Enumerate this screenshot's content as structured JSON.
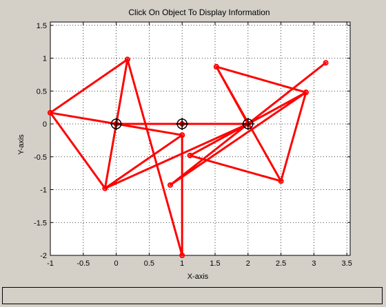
{
  "window": {
    "status_text": "",
    "background": "#d4d0c8"
  },
  "chart_data": {
    "type": "scatter",
    "title": "Click On Object To Display Information",
    "xlabel": "X-axis",
    "ylabel": "Y-axis",
    "xlim": [
      -1,
      3.55
    ],
    "ylim": [
      -2,
      1.55
    ],
    "xticks": [
      -1,
      -0.5,
      0,
      0.5,
      1,
      1.5,
      2,
      2.5,
      3,
      3.5
    ],
    "xtick_labels": [
      "-1",
      "-0.5",
      "0",
      "0.5",
      "1",
      "1.5",
      "2",
      "2.5",
      "3",
      "3.5"
    ],
    "yticks": [
      -2,
      -1.5,
      -1,
      -0.5,
      0,
      0.5,
      1,
      1.5
    ],
    "ytick_labels": [
      "-2",
      "-1.5",
      "-1",
      "-0.5",
      "0",
      "0.5",
      "1",
      "1.5"
    ],
    "grid": true,
    "line_color": "#ff0000",
    "marker_color": "#000000",
    "centers": [
      {
        "x": 0,
        "y": 0
      },
      {
        "x": 1,
        "y": 0
      },
      {
        "x": 2,
        "y": 0
      }
    ],
    "series": [
      {
        "values": [
          {
            "x": -1,
            "y": 0.17
          },
          {
            "x": 0.17,
            "y": 0.98
          },
          {
            "x": -0.17,
            "y": -0.98
          },
          {
            "x": -1,
            "y": 0.17
          },
          {
            "x": 0,
            "y": 0
          },
          {
            "x": 0.17,
            "y": 0.98
          },
          {
            "x": 1,
            "y": -2
          },
          {
            "x": 1,
            "y": -0.17
          },
          {
            "x": 0,
            "y": 0
          },
          {
            "x": 1,
            "y": 0
          },
          {
            "x": 2,
            "y": 0
          },
          {
            "x": -0.17,
            "y": -0.98
          },
          {
            "x": 1,
            "y": -0.17
          }
        ]
      },
      {
        "values": [
          {
            "x": 1.52,
            "y": 0.87
          },
          {
            "x": 2.88,
            "y": 0.48
          },
          {
            "x": 2.5,
            "y": -0.87
          },
          {
            "x": 1.52,
            "y": 0.87
          },
          {
            "x": 2,
            "y": 0
          },
          {
            "x": 1.12,
            "y": -0.48
          },
          {
            "x": 2.88,
            "y": 0.48
          },
          {
            "x": 0.82,
            "y": -0.93
          },
          {
            "x": 3.18,
            "y": 0.93
          },
          {
            "x": 2,
            "y": 0
          },
          {
            "x": 1.12,
            "y": -0.48
          },
          {
            "x": 2.5,
            "y": -0.87
          }
        ]
      }
    ]
  }
}
